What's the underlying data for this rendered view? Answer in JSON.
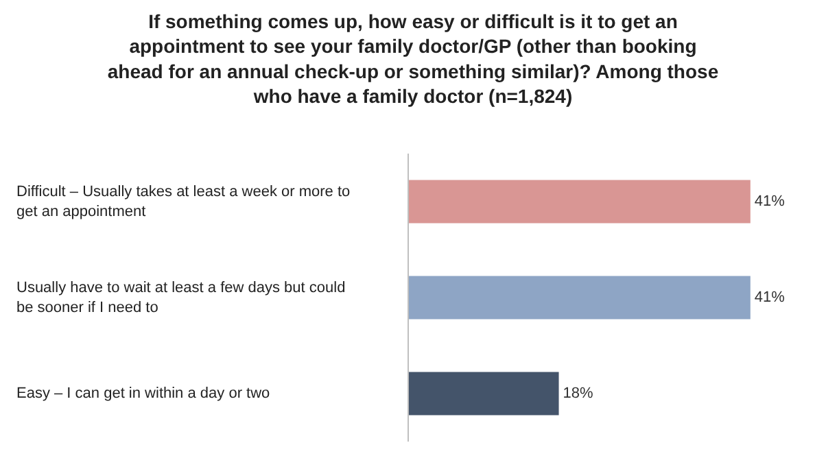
{
  "chart_data": {
    "type": "bar",
    "orientation": "horizontal",
    "title": "If something comes up, how easy or difficult is it to get an appointment to see your family doctor/GP (other than booking ahead for an annual check-up or something similar)? Among those who have a family doctor (n=1,824)",
    "categories": [
      "Difficult – Usually takes at least a week or more to get an appointment",
      "Usually have to wait at least a few days but could be sooner if I need to",
      "Easy – I can get in within a day or two"
    ],
    "values": [
      41,
      41,
      18
    ],
    "colors": [
      "#d99694",
      "#8ea5c5",
      "#44546a"
    ],
    "value_labels": [
      "41%",
      "41%",
      "18%"
    ],
    "grid": false
  }
}
